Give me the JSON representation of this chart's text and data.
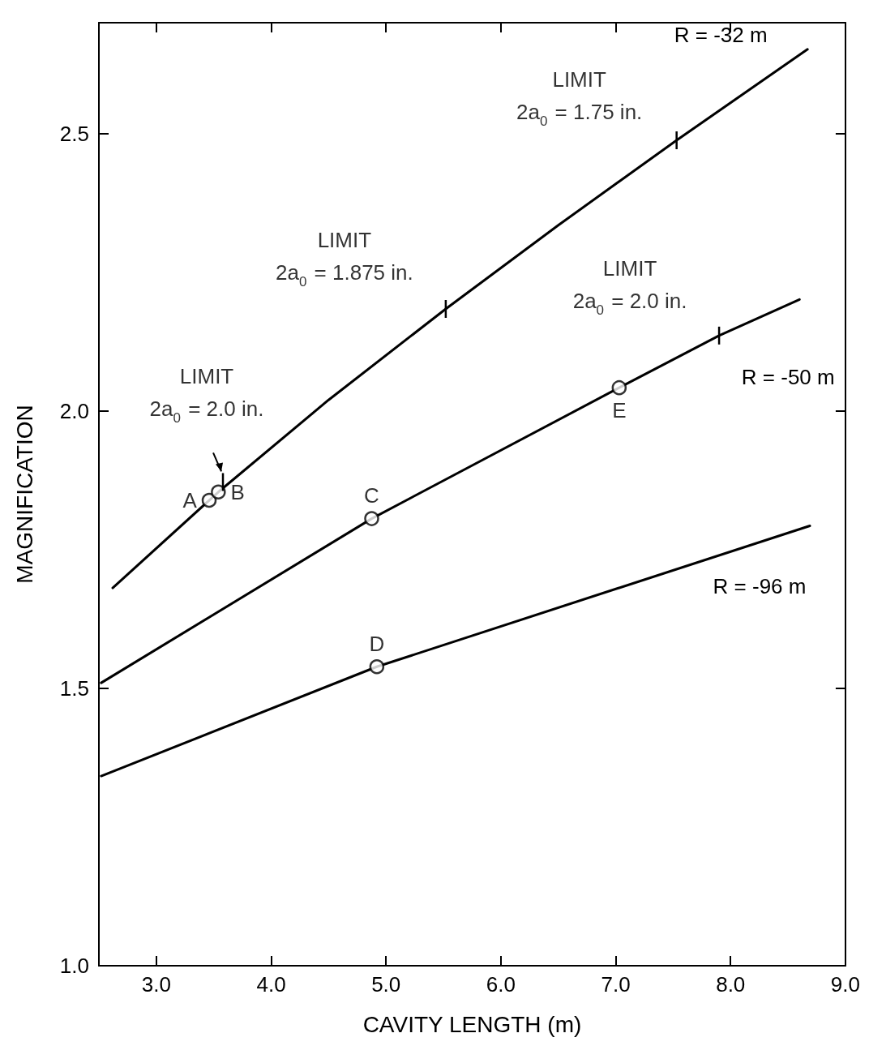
{
  "chart_data": {
    "type": "line",
    "xlabel": "CAVITY LENGTH (m)",
    "ylabel": "MAGNIFICATION",
    "xlim": [
      2.5,
      9.0
    ],
    "ylim": [
      1.0,
      2.7
    ],
    "xticks": [
      {
        "value": 3,
        "label": "3.0"
      },
      {
        "value": 4,
        "label": "4.0"
      },
      {
        "value": 5,
        "label": "5.0"
      },
      {
        "value": 6,
        "label": "6.0"
      },
      {
        "value": 7,
        "label": "7.0"
      },
      {
        "value": 8,
        "label": "8.0"
      },
      {
        "value": 9,
        "label": "9.0"
      }
    ],
    "yticks": [
      {
        "value": 1,
        "label": "1.0"
      },
      {
        "value": 1.5,
        "label": "1.5"
      },
      {
        "value": 2,
        "label": "2.0"
      },
      {
        "value": 2.5,
        "label": "2.5"
      }
    ],
    "grid": false,
    "legend": false,
    "marker": "none",
    "line_style": "solid",
    "series": [
      {
        "name": "R = -32 m",
        "color": "#000000",
        "x": [
          2.62,
          3.46,
          3.54,
          4.5,
          5.52,
          6.5,
          7.53,
          8.67
        ],
        "values": [
          1.681,
          1.839,
          1.854,
          2.02,
          2.184,
          2.335,
          2.488,
          2.652
        ]
      },
      {
        "name": "R = -50 m",
        "color": "#000000",
        "x": [
          2.52,
          4.875,
          7.03,
          7.9,
          8.6
        ],
        "values": [
          1.51,
          1.806,
          2.042,
          2.136,
          2.201
        ]
      },
      {
        "name": "R = -96 m",
        "color": "#000000",
        "x": [
          2.52,
          4.92,
          8.69
        ],
        "values": [
          1.342,
          1.539,
          1.793
        ]
      },
      {
        "type": "scatter",
        "marker": "circle",
        "color": "#000000",
        "x": [
          3.46,
          3.54,
          4.875,
          4.92,
          7.03
        ],
        "values": [
          1.839,
          1.854,
          1.806,
          1.539,
          2.042
        ],
        "value_labels": [
          "A",
          "B",
          "C",
          "D",
          "E"
        ]
      }
    ],
    "annotations": [
      {
        "text": "LIMIT\n2a$_{0}$ = 2.0 in.",
        "x": 3.58,
        "y": 1.872
      },
      {
        "text": "LIMIT\n2a$_{0}$ = 1.875 in.",
        "x": 5.52,
        "y": 2.184
      },
      {
        "text": "LIMIT\n2a$_{0}$ = 1.75 in.",
        "x": 7.53,
        "y": 2.488
      },
      {
        "text": "LIMIT\n2a$_{0}$ = 2.0 in.",
        "x": 7.9,
        "y": 2.136
      }
    ]
  }
}
